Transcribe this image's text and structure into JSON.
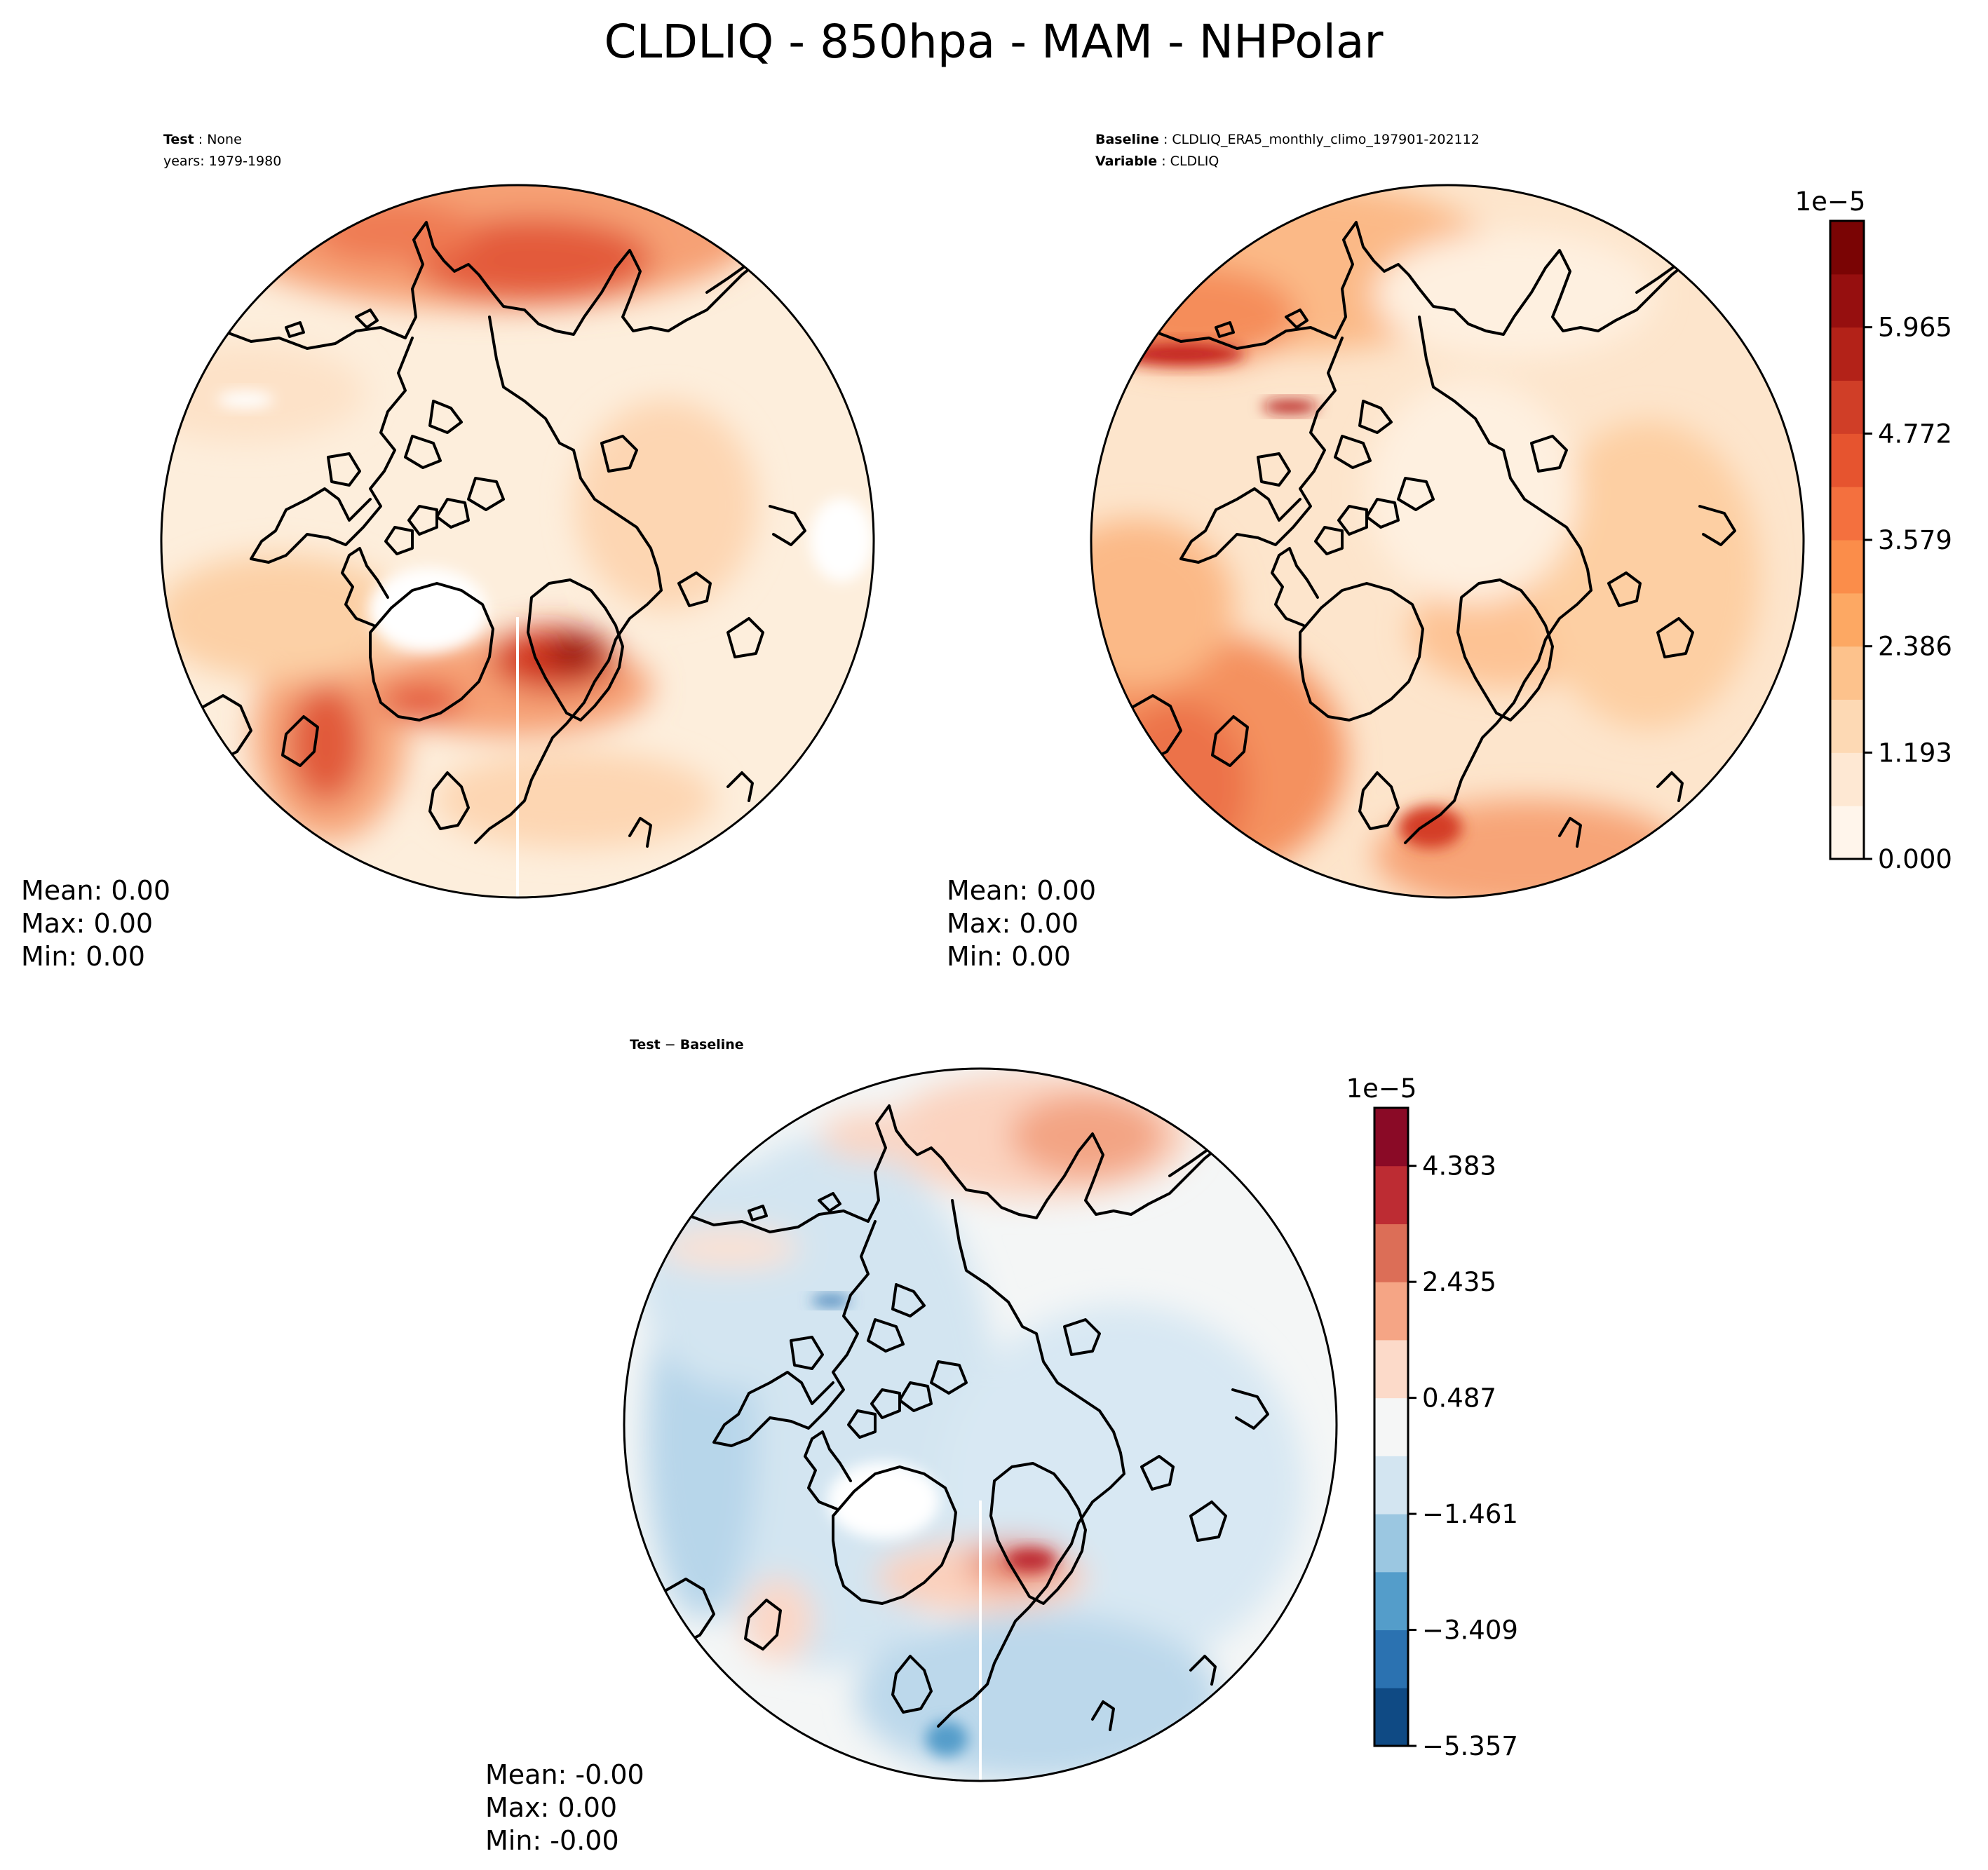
{
  "figure": {
    "title": "CLDLIQ - 850hpa - MAM - NHPolar"
  },
  "panels": [
    {
      "id": "test",
      "label_lines": [
        {
          "bold": "Test",
          "rest": " : None"
        },
        {
          "bold": "",
          "rest": "years: 1979-1980"
        }
      ],
      "stats": [
        "Mean:  0.00",
        "Max:  0.00",
        "Min:  0.00"
      ],
      "base_color": "#fdeedc"
    },
    {
      "id": "baseline",
      "label_lines": [
        {
          "bold": "Baseline",
          "rest": " : CLDLIQ_ERA5_monthly_climo_197901-202112"
        },
        {
          "bold": "Variable",
          "rest": " : CLDLIQ"
        }
      ],
      "stats": [
        "Mean:  0.00",
        "Max:  0.00",
        "Min:  0.00"
      ],
      "base_color": "#fde5cc"
    },
    {
      "id": "diff",
      "label_lines": [
        {
          "bold": "Test",
          "rest": " − ",
          "bold2": "Baseline"
        }
      ],
      "stats": [
        "Mean: -0.00",
        "Max:  0.00",
        "Min: -0.00"
      ],
      "base_color": "#f4f6f6"
    }
  ],
  "colorbars": [
    {
      "id": "cb-main",
      "exponent": "1e−5",
      "colors": [
        "#fff5eb",
        "#fee8d3",
        "#fdd9b4",
        "#fdc28c",
        "#fda863",
        "#fb8d4a",
        "#f4703e",
        "#e6542f",
        "#d03e27",
        "#b32218",
        "#960f0f",
        "#7a0404"
      ],
      "ticks": [
        "0.000",
        "1.193",
        "2.386",
        "3.579",
        "4.772",
        "5.965"
      ],
      "ticks_at_band": [
        0,
        2,
        4,
        6,
        8,
        10
      ]
    },
    {
      "id": "cb-diff",
      "exponent": "1e−5",
      "colors": [
        "#0f4a84",
        "#2b72b1",
        "#549dca",
        "#9bc7e1",
        "#d3e5f1",
        "#f5f6f6",
        "#fcdac9",
        "#f5a585",
        "#dc6e57",
        "#bd2c33",
        "#8a0a26"
      ],
      "ticks": [
        "−5.357",
        "−3.409",
        "−1.461",
        "0.487",
        "2.435",
        "4.383"
      ],
      "ticks_at_band": [
        0,
        2,
        4,
        6,
        8,
        10
      ]
    }
  ]
}
